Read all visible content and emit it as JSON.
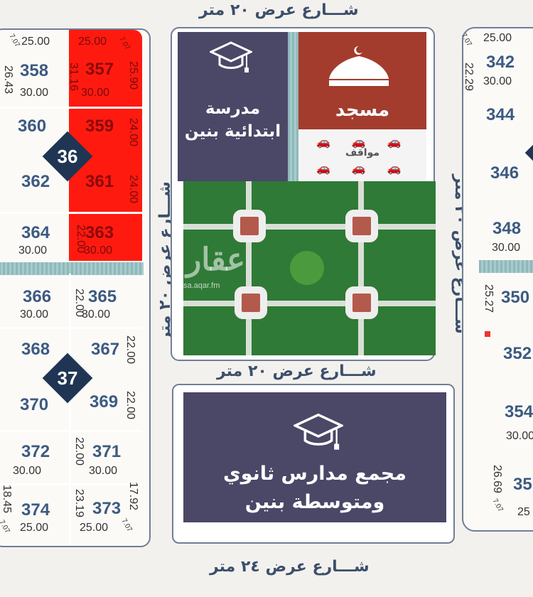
{
  "streets": {
    "top": "شـــارع عرض ٢٠ متر",
    "middle": "شـــارع عرض ٢٠ متر",
    "bottom": "شـــارع عرض ٢٤ متر",
    "left_vertical": "شـــارع عرض ٢٠ متر",
    "right_vertical": "شـــارع عرض ٢٠ متر"
  },
  "blocks": [
    {
      "label": "36"
    },
    {
      "label": "37"
    }
  ],
  "facilities": {
    "school_primary": "مدرسة ابتدائية بنين",
    "mosque": "مسجد",
    "parking": "مواقف",
    "school_complex": "مجمع مدارس ثانوي ومتوسطة بنين"
  },
  "watermark": {
    "logo": "عقار",
    "url": "sa.aqar.fm"
  },
  "colors": {
    "highlight": "#ff1a10",
    "school": "#4b4767",
    "mosque": "#a33c2d",
    "park": "#2f7a36",
    "plot_number": "#3d5a82"
  },
  "plots": [
    {
      "number": "358",
      "dims": [
        "25.00",
        "26.43",
        "30.00",
        "7.07"
      ]
    },
    {
      "number": "357",
      "highlighted": true,
      "dims": [
        "25.00",
        "31.16",
        "25.90",
        "30.00",
        "7.07"
      ]
    },
    {
      "number": "360",
      "dims": []
    },
    {
      "number": "359",
      "highlighted": true,
      "dims": [
        "24.00"
      ]
    },
    {
      "number": "362",
      "dims": []
    },
    {
      "number": "361",
      "highlighted": true,
      "dims": [
        "24.00"
      ]
    },
    {
      "number": "364",
      "dims": [
        "30.00"
      ]
    },
    {
      "number": "363",
      "highlighted": true,
      "dims": [
        "22.00",
        "30.00"
      ]
    },
    {
      "number": "366",
      "dims": [
        "30.00"
      ]
    },
    {
      "number": "365",
      "dims": [
        "22.00",
        "30.00"
      ]
    },
    {
      "number": "368",
      "dims": []
    },
    {
      "number": "367",
      "dims": [
        "22.00"
      ]
    },
    {
      "number": "370",
      "dims": []
    },
    {
      "number": "369",
      "dims": [
        "22.00"
      ]
    },
    {
      "number": "372",
      "dims": [
        "30.00"
      ]
    },
    {
      "number": "371",
      "dims": [
        "22.00",
        "30.00"
      ]
    },
    {
      "number": "374",
      "dims": [
        "18.45",
        "7.07",
        "25.00"
      ]
    },
    {
      "number": "373",
      "dims": [
        "23.19",
        "17.92",
        "25.00",
        "7.07"
      ]
    },
    {
      "number": "342",
      "dims": [
        "25.00",
        "22.29",
        "30.00",
        "7.07"
      ]
    },
    {
      "number": "344",
      "dims": []
    },
    {
      "number": "346",
      "dims": []
    },
    {
      "number": "348",
      "dims": [
        "30.00"
      ]
    },
    {
      "number": "350",
      "dims": [
        "25.27"
      ]
    },
    {
      "number": "352",
      "dims": []
    },
    {
      "number": "354",
      "dims": [
        "30.00"
      ]
    },
    {
      "number": "35",
      "dims": [
        "26.69",
        "7.07",
        "25"
      ]
    }
  ]
}
